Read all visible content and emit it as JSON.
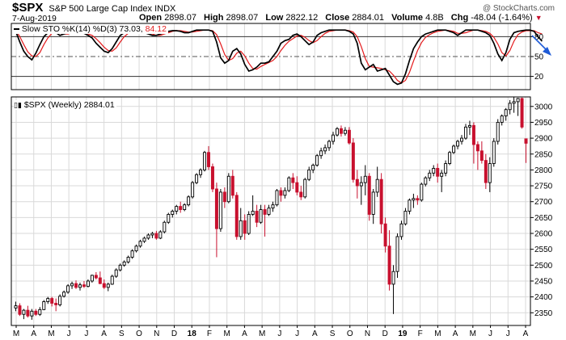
{
  "header": {
    "symbol": "$SPX",
    "name": "S&P 500 Large Cap Index INDX",
    "date": "7-Aug-2019",
    "open_label": "Open",
    "open": "2898.07",
    "high_label": "High",
    "high": "2898.07",
    "low_label": "Low",
    "low": "2822.12",
    "close_label": "Close",
    "close": "2884.01",
    "volume_label": "Volume",
    "volume": "4.8B",
    "chg_label": "Chg",
    "chg": "-48.04 (-1.64%)",
    "watermark": "@ StockCharts.com"
  },
  "colors": {
    "up": "#000000",
    "down": "#c8102e",
    "k_line": "#000000",
    "d_line": "#e41a1c",
    "grid": "#d9d9d9",
    "arrow": "#1f5bd6"
  },
  "stoch_legend": {
    "label": "Slow STO %K(14) %D(3)",
    "k_value": "73.03",
    "d_value": "84.12"
  },
  "price_legend": {
    "label": "$SPX (Weekly) 2884.01"
  },
  "chart_data": [
    {
      "type": "candlestick",
      "series_name": "$SPX (Weekly)",
      "ylim": [
        2310,
        3030
      ],
      "y_ticks": [
        2350,
        2400,
        2450,
        2500,
        2550,
        2600,
        2650,
        2700,
        2750,
        2800,
        2850,
        2900,
        2950,
        3000
      ],
      "x_ticks": [
        "M",
        "A",
        "M",
        "J",
        "J",
        "A",
        "S",
        "O",
        "N",
        "D",
        "18",
        "F",
        "M",
        "A",
        "M",
        "J",
        "J",
        "A",
        "S",
        "O",
        "N",
        "D",
        "19",
        "F",
        "M",
        "A",
        "M",
        "J",
        "J",
        "A"
      ],
      "grid": true,
      "candles": [
        {
          "o": 2365,
          "h": 2385,
          "l": 2355,
          "c": 2372
        },
        {
          "o": 2372,
          "h": 2380,
          "l": 2340,
          "c": 2345
        },
        {
          "o": 2345,
          "h": 2362,
          "l": 2330,
          "c": 2358
        },
        {
          "o": 2358,
          "h": 2372,
          "l": 2335,
          "c": 2340
        },
        {
          "o": 2340,
          "h": 2362,
          "l": 2328,
          "c": 2355
        },
        {
          "o": 2355,
          "h": 2362,
          "l": 2340,
          "c": 2345
        },
        {
          "o": 2345,
          "h": 2368,
          "l": 2340,
          "c": 2360
        },
        {
          "o": 2360,
          "h": 2390,
          "l": 2358,
          "c": 2385
        },
        {
          "o": 2385,
          "h": 2400,
          "l": 2378,
          "c": 2395
        },
        {
          "o": 2395,
          "h": 2400,
          "l": 2370,
          "c": 2380
        },
        {
          "o": 2380,
          "h": 2395,
          "l": 2355,
          "c": 2375
        },
        {
          "o": 2375,
          "h": 2408,
          "l": 2370,
          "c": 2402
        },
        {
          "o": 2402,
          "h": 2420,
          "l": 2398,
          "c": 2415
        },
        {
          "o": 2415,
          "h": 2440,
          "l": 2410,
          "c": 2435
        },
        {
          "o": 2435,
          "h": 2448,
          "l": 2425,
          "c": 2442
        },
        {
          "o": 2442,
          "h": 2452,
          "l": 2425,
          "c": 2430
        },
        {
          "o": 2430,
          "h": 2445,
          "l": 2420,
          "c": 2438
        },
        {
          "o": 2438,
          "h": 2450,
          "l": 2428,
          "c": 2433
        },
        {
          "o": 2433,
          "h": 2455,
          "l": 2430,
          "c": 2450
        },
        {
          "o": 2450,
          "h": 2470,
          "l": 2445,
          "c": 2468
        },
        {
          "o": 2468,
          "h": 2478,
          "l": 2455,
          "c": 2460
        },
        {
          "o": 2460,
          "h": 2480,
          "l": 2440,
          "c": 2442
        },
        {
          "o": 2442,
          "h": 2455,
          "l": 2425,
          "c": 2430
        },
        {
          "o": 2430,
          "h": 2445,
          "l": 2418,
          "c": 2440
        },
        {
          "o": 2440,
          "h": 2470,
          "l": 2438,
          "c": 2465
        },
        {
          "o": 2465,
          "h": 2490,
          "l": 2460,
          "c": 2485
        },
        {
          "o": 2485,
          "h": 2505,
          "l": 2480,
          "c": 2500
        },
        {
          "o": 2500,
          "h": 2515,
          "l": 2495,
          "c": 2510
        },
        {
          "o": 2510,
          "h": 2530,
          "l": 2505,
          "c": 2525
        },
        {
          "o": 2525,
          "h": 2550,
          "l": 2520,
          "c": 2545
        },
        {
          "o": 2545,
          "h": 2565,
          "l": 2540,
          "c": 2560
        },
        {
          "o": 2560,
          "h": 2580,
          "l": 2555,
          "c": 2575
        },
        {
          "o": 2575,
          "h": 2590,
          "l": 2570,
          "c": 2585
        },
        {
          "o": 2585,
          "h": 2600,
          "l": 2580,
          "c": 2595
        },
        {
          "o": 2595,
          "h": 2605,
          "l": 2585,
          "c": 2600
        },
        {
          "o": 2600,
          "h": 2608,
          "l": 2580,
          "c": 2585
        },
        {
          "o": 2585,
          "h": 2610,
          "l": 2582,
          "c": 2605
        },
        {
          "o": 2605,
          "h": 2640,
          "l": 2600,
          "c": 2635
        },
        {
          "o": 2635,
          "h": 2665,
          "l": 2630,
          "c": 2660
        },
        {
          "o": 2660,
          "h": 2675,
          "l": 2650,
          "c": 2670
        },
        {
          "o": 2670,
          "h": 2690,
          "l": 2660,
          "c": 2685
        },
        {
          "o": 2685,
          "h": 2700,
          "l": 2665,
          "c": 2675
        },
        {
          "o": 2675,
          "h": 2695,
          "l": 2670,
          "c": 2690
        },
        {
          "o": 2690,
          "h": 2720,
          "l": 2685,
          "c": 2715
        },
        {
          "o": 2715,
          "h": 2765,
          "l": 2710,
          "c": 2760
        },
        {
          "o": 2760,
          "h": 2790,
          "l": 2755,
          "c": 2785
        },
        {
          "o": 2785,
          "h": 2805,
          "l": 2775,
          "c": 2800
        },
        {
          "o": 2800,
          "h": 2860,
          "l": 2795,
          "c": 2855
        },
        {
          "o": 2855,
          "h": 2875,
          "l": 2800,
          "c": 2810
        },
        {
          "o": 2810,
          "h": 2820,
          "l": 2730,
          "c": 2740
        },
        {
          "o": 2740,
          "h": 2760,
          "l": 2525,
          "c": 2615
        },
        {
          "o": 2615,
          "h": 2740,
          "l": 2605,
          "c": 2730
        },
        {
          "o": 2730,
          "h": 2745,
          "l": 2680,
          "c": 2700
        },
        {
          "o": 2700,
          "h": 2790,
          "l": 2695,
          "c": 2780
        },
        {
          "o": 2780,
          "h": 2800,
          "l": 2710,
          "c": 2720
        },
        {
          "o": 2720,
          "h": 2730,
          "l": 2580,
          "c": 2590
        },
        {
          "o": 2590,
          "h": 2680,
          "l": 2580,
          "c": 2640
        },
        {
          "o": 2640,
          "h": 2660,
          "l": 2580,
          "c": 2600
        },
        {
          "o": 2600,
          "h": 2670,
          "l": 2595,
          "c": 2660
        },
        {
          "o": 2660,
          "h": 2720,
          "l": 2655,
          "c": 2670
        },
        {
          "o": 2670,
          "h": 2690,
          "l": 2620,
          "c": 2635
        },
        {
          "o": 2635,
          "h": 2690,
          "l": 2630,
          "c": 2675
        },
        {
          "o": 2675,
          "h": 2690,
          "l": 2590,
          "c": 2660
        },
        {
          "o": 2660,
          "h": 2690,
          "l": 2655,
          "c": 2680
        },
        {
          "o": 2680,
          "h": 2700,
          "l": 2668,
          "c": 2690
        },
        {
          "o": 2690,
          "h": 2740,
          "l": 2685,
          "c": 2735
        },
        {
          "o": 2735,
          "h": 2745,
          "l": 2700,
          "c": 2720
        },
        {
          "o": 2720,
          "h": 2745,
          "l": 2710,
          "c": 2735
        },
        {
          "o": 2735,
          "h": 2780,
          "l": 2730,
          "c": 2775
        },
        {
          "o": 2775,
          "h": 2790,
          "l": 2740,
          "c": 2760
        },
        {
          "o": 2760,
          "h": 2780,
          "l": 2720,
          "c": 2730
        },
        {
          "o": 2730,
          "h": 2750,
          "l": 2705,
          "c": 2715
        },
        {
          "o": 2715,
          "h": 2775,
          "l": 2710,
          "c": 2770
        },
        {
          "o": 2770,
          "h": 2810,
          "l": 2765,
          "c": 2800
        },
        {
          "o": 2800,
          "h": 2820,
          "l": 2790,
          "c": 2815
        },
        {
          "o": 2815,
          "h": 2850,
          "l": 2810,
          "c": 2845
        },
        {
          "o": 2845,
          "h": 2870,
          "l": 2835,
          "c": 2860
        },
        {
          "o": 2860,
          "h": 2880,
          "l": 2850,
          "c": 2870
        },
        {
          "o": 2870,
          "h": 2895,
          "l": 2860,
          "c": 2890
        },
        {
          "o": 2890,
          "h": 2920,
          "l": 2880,
          "c": 2910
        },
        {
          "o": 2910,
          "h": 2935,
          "l": 2905,
          "c": 2930
        },
        {
          "o": 2930,
          "h": 2940,
          "l": 2905,
          "c": 2915
        },
        {
          "o": 2915,
          "h": 2935,
          "l": 2908,
          "c": 2925
        },
        {
          "o": 2925,
          "h": 2935,
          "l": 2880,
          "c": 2885
        },
        {
          "o": 2885,
          "h": 2900,
          "l": 2760,
          "c": 2770
        },
        {
          "o": 2770,
          "h": 2800,
          "l": 2710,
          "c": 2750
        },
        {
          "o": 2750,
          "h": 2780,
          "l": 2690,
          "c": 2760
        },
        {
          "o": 2760,
          "h": 2815,
          "l": 2720,
          "c": 2780
        },
        {
          "o": 2780,
          "h": 2790,
          "l": 2640,
          "c": 2660
        },
        {
          "o": 2660,
          "h": 2740,
          "l": 2630,
          "c": 2730
        },
        {
          "o": 2730,
          "h": 2810,
          "l": 2715,
          "c": 2770
        },
        {
          "o": 2770,
          "h": 2790,
          "l": 2600,
          "c": 2630
        },
        {
          "o": 2630,
          "h": 2650,
          "l": 2540,
          "c": 2560
        },
        {
          "o": 2560,
          "h": 2610,
          "l": 2420,
          "c": 2440
        },
        {
          "o": 2440,
          "h": 2500,
          "l": 2346,
          "c": 2480
        },
        {
          "o": 2480,
          "h": 2600,
          "l": 2460,
          "c": 2590
        },
        {
          "o": 2590,
          "h": 2640,
          "l": 2580,
          "c": 2630
        },
        {
          "o": 2630,
          "h": 2680,
          "l": 2625,
          "c": 2670
        },
        {
          "o": 2670,
          "h": 2710,
          "l": 2660,
          "c": 2705
        },
        {
          "o": 2705,
          "h": 2725,
          "l": 2680,
          "c": 2710
        },
        {
          "o": 2710,
          "h": 2720,
          "l": 2690,
          "c": 2705
        },
        {
          "o": 2705,
          "h": 2760,
          "l": 2700,
          "c": 2755
        },
        {
          "o": 2755,
          "h": 2780,
          "l": 2748,
          "c": 2775
        },
        {
          "o": 2775,
          "h": 2800,
          "l": 2765,
          "c": 2790
        },
        {
          "o": 2790,
          "h": 2815,
          "l": 2780,
          "c": 2805
        },
        {
          "o": 2805,
          "h": 2820,
          "l": 2760,
          "c": 2780
        },
        {
          "o": 2780,
          "h": 2800,
          "l": 2730,
          "c": 2790
        },
        {
          "o": 2790,
          "h": 2830,
          "l": 2780,
          "c": 2820
        },
        {
          "o": 2820,
          "h": 2860,
          "l": 2815,
          "c": 2855
        },
        {
          "o": 2855,
          "h": 2880,
          "l": 2850,
          "c": 2875
        },
        {
          "o": 2875,
          "h": 2895,
          "l": 2865,
          "c": 2890
        },
        {
          "o": 2890,
          "h": 2910,
          "l": 2880,
          "c": 2900
        },
        {
          "o": 2900,
          "h": 2945,
          "l": 2895,
          "c": 2935
        },
        {
          "o": 2935,
          "h": 2955,
          "l": 2910,
          "c": 2940
        },
        {
          "o": 2940,
          "h": 2950,
          "l": 2820,
          "c": 2880
        },
        {
          "o": 2880,
          "h": 2890,
          "l": 2800,
          "c": 2860
        },
        {
          "o": 2860,
          "h": 2890,
          "l": 2820,
          "c": 2830
        },
        {
          "o": 2830,
          "h": 2850,
          "l": 2740,
          "c": 2760
        },
        {
          "o": 2760,
          "h": 2840,
          "l": 2730,
          "c": 2820
        },
        {
          "o": 2820,
          "h": 2900,
          "l": 2810,
          "c": 2890
        },
        {
          "o": 2890,
          "h": 2960,
          "l": 2880,
          "c": 2950
        },
        {
          "o": 2950,
          "h": 2975,
          "l": 2940,
          "c": 2970
        },
        {
          "o": 2970,
          "h": 2995,
          "l": 2955,
          "c": 2990
        },
        {
          "o": 2990,
          "h": 3020,
          "l": 2975,
          "c": 3010
        },
        {
          "o": 3010,
          "h": 3030,
          "l": 2980,
          "c": 3015
        },
        {
          "o": 3015,
          "h": 3027,
          "l": 2970,
          "c": 3025
        },
        {
          "o": 3025,
          "h": 3028,
          "l": 2930,
          "c": 2935
        },
        {
          "o": 2898,
          "h": 2898,
          "l": 2822,
          "c": 2884
        }
      ]
    },
    {
      "type": "line",
      "series_name": "Slow STO %K(14) %D(3)",
      "ylim": [
        0,
        100
      ],
      "y_ticks": [
        20,
        50,
        80
      ],
      "reference_lines": [
        20,
        50,
        80
      ],
      "series": [
        {
          "name": "%K(14)",
          "color": "#000000",
          "values": [
            88,
            72,
            58,
            50,
            45,
            55,
            68,
            80,
            86,
            88,
            86,
            82,
            84,
            86,
            88,
            89,
            86,
            85,
            82,
            78,
            70,
            64,
            58,
            56,
            62,
            72,
            82,
            86,
            87,
            88,
            89,
            88,
            86,
            84,
            82,
            82,
            84,
            86,
            88,
            89,
            89,
            88,
            86,
            86,
            88,
            90,
            90,
            90,
            90,
            88,
            72,
            48,
            40,
            44,
            58,
            62,
            54,
            38,
            28,
            30,
            34,
            40,
            40,
            42,
            50,
            58,
            70,
            74,
            76,
            82,
            84,
            80,
            74,
            68,
            72,
            82,
            86,
            88,
            90,
            90,
            90,
            90,
            90,
            88,
            84,
            70,
            40,
            30,
            34,
            38,
            28,
            30,
            32,
            22,
            12,
            8,
            10,
            24,
            44,
            62,
            72,
            80,
            84,
            86,
            88,
            90,
            90,
            90,
            88,
            86,
            82,
            86,
            90,
            90,
            90,
            90,
            88,
            86,
            82,
            70,
            54,
            44,
            56,
            76,
            86,
            88,
            89,
            90,
            90,
            88,
            80,
            73
          ]
        },
        {
          "name": "%D(3)",
          "color": "#e41a1c",
          "values": [
            90,
            80,
            68,
            57,
            51,
            50,
            56,
            68,
            78,
            85,
            87,
            85,
            84,
            84,
            86,
            88,
            88,
            87,
            84,
            82,
            77,
            71,
            64,
            59,
            58,
            63,
            72,
            80,
            85,
            87,
            88,
            88,
            87,
            86,
            84,
            82,
            82,
            84,
            86,
            88,
            89,
            89,
            88,
            87,
            87,
            88,
            89,
            90,
            90,
            89,
            83,
            69,
            53,
            44,
            47,
            55,
            58,
            51,
            40,
            32,
            31,
            35,
            38,
            41,
            44,
            50,
            59,
            67,
            73,
            77,
            81,
            82,
            79,
            74,
            71,
            74,
            80,
            85,
            88,
            89,
            90,
            90,
            90,
            89,
            87,
            80,
            65,
            47,
            35,
            34,
            33,
            32,
            30,
            28,
            22,
            14,
            10,
            14,
            26,
            43,
            59,
            71,
            79,
            83,
            86,
            88,
            89,
            90,
            89,
            88,
            85,
            85,
            86,
            88,
            90,
            90,
            89,
            88,
            85,
            79,
            69,
            56,
            51,
            59,
            73,
            83,
            87,
            89,
            89,
            89,
            86,
            84
          ]
        }
      ]
    }
  ]
}
